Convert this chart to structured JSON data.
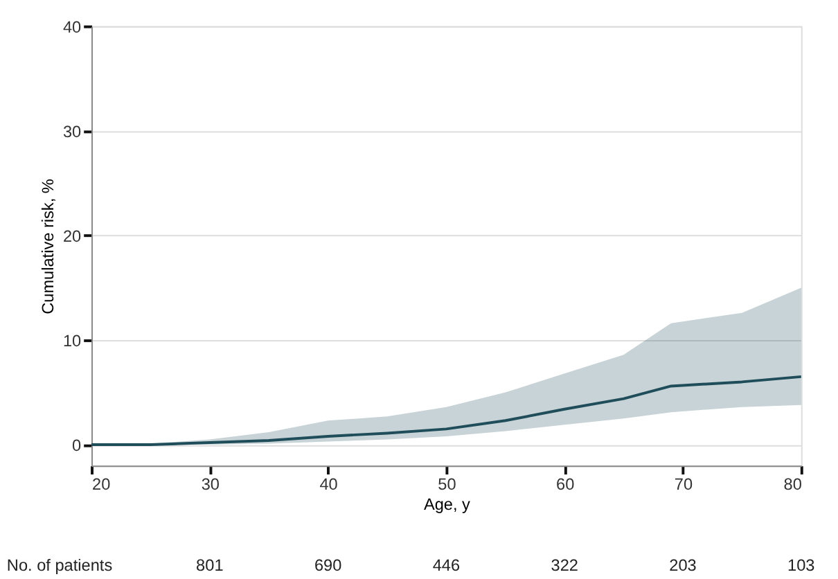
{
  "chart_data": {
    "type": "line",
    "xlabel": "Age, y",
    "ylabel": "Cumulative risk, %",
    "xlim": [
      20,
      80
    ],
    "xticks": [
      20,
      30,
      40,
      50,
      60,
      70,
      80
    ],
    "ylim": [
      -2,
      40
    ],
    "yticks": [
      0,
      10,
      20,
      30,
      40
    ],
    "grid": "y",
    "marker": "none",
    "line_style": "solid",
    "series": [
      {
        "color": "#1f4e5a",
        "x": [
          20,
          25,
          30,
          35,
          40,
          45,
          50,
          55,
          60,
          65,
          69,
          75,
          80
        ],
        "values": [
          0,
          0,
          0.2,
          0.4,
          0.8,
          1.1,
          1.5,
          2.3,
          3.4,
          4.4,
          5.6,
          6.0,
          6.5
        ],
        "lower": [
          0,
          0,
          0,
          0.1,
          0.3,
          0.5,
          0.8,
          1.3,
          1.9,
          2.5,
          3.1,
          3.6,
          3.8
        ],
        "upper": [
          0,
          0.1,
          0.5,
          1.2,
          2.3,
          2.7,
          3.6,
          5.0,
          6.8,
          8.6,
          11.6,
          12.6,
          15.0
        ]
      }
    ],
    "annotations": [
      "No. of patients",
      "801",
      "690",
      "446",
      "322",
      "203",
      "103"
    ]
  }
}
